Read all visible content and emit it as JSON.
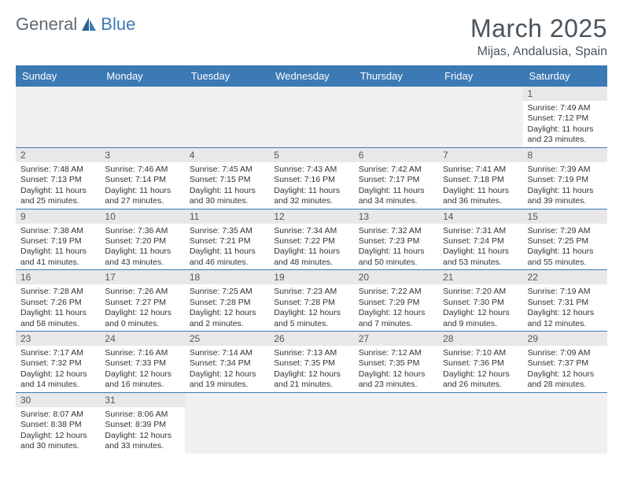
{
  "logo": {
    "part1": "General",
    "part2": "Blue"
  },
  "title": "March 2025",
  "location": "Mijas, Andalusia, Spain",
  "colors": {
    "header_bg": "#3c7ab5",
    "header_text": "#ffffff",
    "daynum_bg": "#e8e8e8",
    "border": "#3c7ab5",
    "empty_bg": "#f0f0f0",
    "text": "#333333",
    "title_color": "#4a545c"
  },
  "weekdays": [
    "Sunday",
    "Monday",
    "Tuesday",
    "Wednesday",
    "Thursday",
    "Friday",
    "Saturday"
  ],
  "weeks": [
    [
      null,
      null,
      null,
      null,
      null,
      null,
      {
        "n": "1",
        "sr": "Sunrise: 7:49 AM",
        "ss": "Sunset: 7:12 PM",
        "dl": "Daylight: 11 hours and 23 minutes."
      }
    ],
    [
      {
        "n": "2",
        "sr": "Sunrise: 7:48 AM",
        "ss": "Sunset: 7:13 PM",
        "dl": "Daylight: 11 hours and 25 minutes."
      },
      {
        "n": "3",
        "sr": "Sunrise: 7:46 AM",
        "ss": "Sunset: 7:14 PM",
        "dl": "Daylight: 11 hours and 27 minutes."
      },
      {
        "n": "4",
        "sr": "Sunrise: 7:45 AM",
        "ss": "Sunset: 7:15 PM",
        "dl": "Daylight: 11 hours and 30 minutes."
      },
      {
        "n": "5",
        "sr": "Sunrise: 7:43 AM",
        "ss": "Sunset: 7:16 PM",
        "dl": "Daylight: 11 hours and 32 minutes."
      },
      {
        "n": "6",
        "sr": "Sunrise: 7:42 AM",
        "ss": "Sunset: 7:17 PM",
        "dl": "Daylight: 11 hours and 34 minutes."
      },
      {
        "n": "7",
        "sr": "Sunrise: 7:41 AM",
        "ss": "Sunset: 7:18 PM",
        "dl": "Daylight: 11 hours and 36 minutes."
      },
      {
        "n": "8",
        "sr": "Sunrise: 7:39 AM",
        "ss": "Sunset: 7:19 PM",
        "dl": "Daylight: 11 hours and 39 minutes."
      }
    ],
    [
      {
        "n": "9",
        "sr": "Sunrise: 7:38 AM",
        "ss": "Sunset: 7:19 PM",
        "dl": "Daylight: 11 hours and 41 minutes."
      },
      {
        "n": "10",
        "sr": "Sunrise: 7:36 AM",
        "ss": "Sunset: 7:20 PM",
        "dl": "Daylight: 11 hours and 43 minutes."
      },
      {
        "n": "11",
        "sr": "Sunrise: 7:35 AM",
        "ss": "Sunset: 7:21 PM",
        "dl": "Daylight: 11 hours and 46 minutes."
      },
      {
        "n": "12",
        "sr": "Sunrise: 7:34 AM",
        "ss": "Sunset: 7:22 PM",
        "dl": "Daylight: 11 hours and 48 minutes."
      },
      {
        "n": "13",
        "sr": "Sunrise: 7:32 AM",
        "ss": "Sunset: 7:23 PM",
        "dl": "Daylight: 11 hours and 50 minutes."
      },
      {
        "n": "14",
        "sr": "Sunrise: 7:31 AM",
        "ss": "Sunset: 7:24 PM",
        "dl": "Daylight: 11 hours and 53 minutes."
      },
      {
        "n": "15",
        "sr": "Sunrise: 7:29 AM",
        "ss": "Sunset: 7:25 PM",
        "dl": "Daylight: 11 hours and 55 minutes."
      }
    ],
    [
      {
        "n": "16",
        "sr": "Sunrise: 7:28 AM",
        "ss": "Sunset: 7:26 PM",
        "dl": "Daylight: 11 hours and 58 minutes."
      },
      {
        "n": "17",
        "sr": "Sunrise: 7:26 AM",
        "ss": "Sunset: 7:27 PM",
        "dl": "Daylight: 12 hours and 0 minutes."
      },
      {
        "n": "18",
        "sr": "Sunrise: 7:25 AM",
        "ss": "Sunset: 7:28 PM",
        "dl": "Daylight: 12 hours and 2 minutes."
      },
      {
        "n": "19",
        "sr": "Sunrise: 7:23 AM",
        "ss": "Sunset: 7:28 PM",
        "dl": "Daylight: 12 hours and 5 minutes."
      },
      {
        "n": "20",
        "sr": "Sunrise: 7:22 AM",
        "ss": "Sunset: 7:29 PM",
        "dl": "Daylight: 12 hours and 7 minutes."
      },
      {
        "n": "21",
        "sr": "Sunrise: 7:20 AM",
        "ss": "Sunset: 7:30 PM",
        "dl": "Daylight: 12 hours and 9 minutes."
      },
      {
        "n": "22",
        "sr": "Sunrise: 7:19 AM",
        "ss": "Sunset: 7:31 PM",
        "dl": "Daylight: 12 hours and 12 minutes."
      }
    ],
    [
      {
        "n": "23",
        "sr": "Sunrise: 7:17 AM",
        "ss": "Sunset: 7:32 PM",
        "dl": "Daylight: 12 hours and 14 minutes."
      },
      {
        "n": "24",
        "sr": "Sunrise: 7:16 AM",
        "ss": "Sunset: 7:33 PM",
        "dl": "Daylight: 12 hours and 16 minutes."
      },
      {
        "n": "25",
        "sr": "Sunrise: 7:14 AM",
        "ss": "Sunset: 7:34 PM",
        "dl": "Daylight: 12 hours and 19 minutes."
      },
      {
        "n": "26",
        "sr": "Sunrise: 7:13 AM",
        "ss": "Sunset: 7:35 PM",
        "dl": "Daylight: 12 hours and 21 minutes."
      },
      {
        "n": "27",
        "sr": "Sunrise: 7:12 AM",
        "ss": "Sunset: 7:35 PM",
        "dl": "Daylight: 12 hours and 23 minutes."
      },
      {
        "n": "28",
        "sr": "Sunrise: 7:10 AM",
        "ss": "Sunset: 7:36 PM",
        "dl": "Daylight: 12 hours and 26 minutes."
      },
      {
        "n": "29",
        "sr": "Sunrise: 7:09 AM",
        "ss": "Sunset: 7:37 PM",
        "dl": "Daylight: 12 hours and 28 minutes."
      }
    ],
    [
      {
        "n": "30",
        "sr": "Sunrise: 8:07 AM",
        "ss": "Sunset: 8:38 PM",
        "dl": "Daylight: 12 hours and 30 minutes."
      },
      {
        "n": "31",
        "sr": "Sunrise: 8:06 AM",
        "ss": "Sunset: 8:39 PM",
        "dl": "Daylight: 12 hours and 33 minutes."
      },
      null,
      null,
      null,
      null,
      null
    ]
  ]
}
